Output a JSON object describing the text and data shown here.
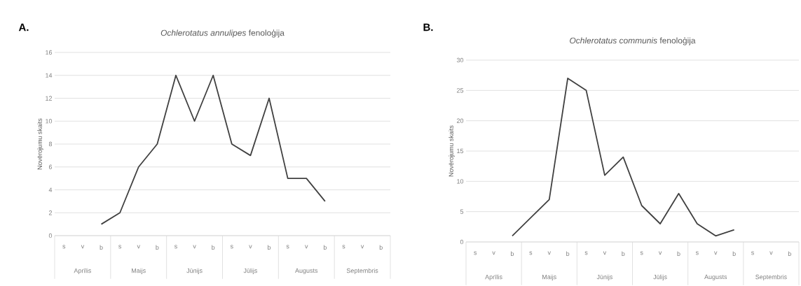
{
  "chart_data": [
    {
      "type": "line",
      "title": "*Ochlerotatus annulipes* fenoloģija",
      "ylabel": "Novērojumu skaits",
      "categories": [
        "s",
        "v",
        "b",
        "s",
        "v",
        "b",
        "s",
        "v",
        "b",
        "s",
        "v",
        "b",
        "s",
        "v",
        "b",
        "s",
        "v",
        "b"
      ],
      "values": [
        null,
        null,
        1,
        2,
        6,
        8,
        14,
        10,
        14,
        8,
        7,
        12,
        5,
        5,
        3,
        null,
        null,
        null
      ],
      "color": "#404040",
      "ylim": [
        0,
        16
      ],
      "yticks": [
        0,
        2,
        4,
        6,
        8,
        10,
        12,
        14,
        16
      ],
      "grid": "y",
      "marker": "none",
      "line_style": "solid",
      "annotations": [
        "A.",
        "Aprīlis",
        "Maijs",
        "Jūnijs",
        "Jūlijs",
        "Augusts",
        "Septembris"
      ]
    },
    {
      "type": "line",
      "title": "*Ochlerotatus communis* fenoloģija",
      "ylabel": "Novērojumu skaits",
      "categories": [
        "s",
        "v",
        "b",
        "s",
        "v",
        "b",
        "s",
        "v",
        "b",
        "s",
        "v",
        "b",
        "s",
        "v",
        "b",
        "s",
        "v",
        "b"
      ],
      "values": [
        null,
        null,
        1,
        4,
        7,
        27,
        25,
        11,
        14,
        6,
        3,
        8,
        3,
        1,
        2,
        null,
        null,
        null
      ],
      "color": "#404040",
      "ylim": [
        0,
        30
      ],
      "yticks": [
        0,
        5,
        10,
        15,
        20,
        25,
        30
      ],
      "grid": "y",
      "marker": "none",
      "line_style": "solid",
      "annotations": [
        "B.",
        "Aprīlis",
        "Maijs",
        "Jūnijs",
        "Jūlijs",
        "Augusts",
        "Septembris"
      ]
    }
  ]
}
